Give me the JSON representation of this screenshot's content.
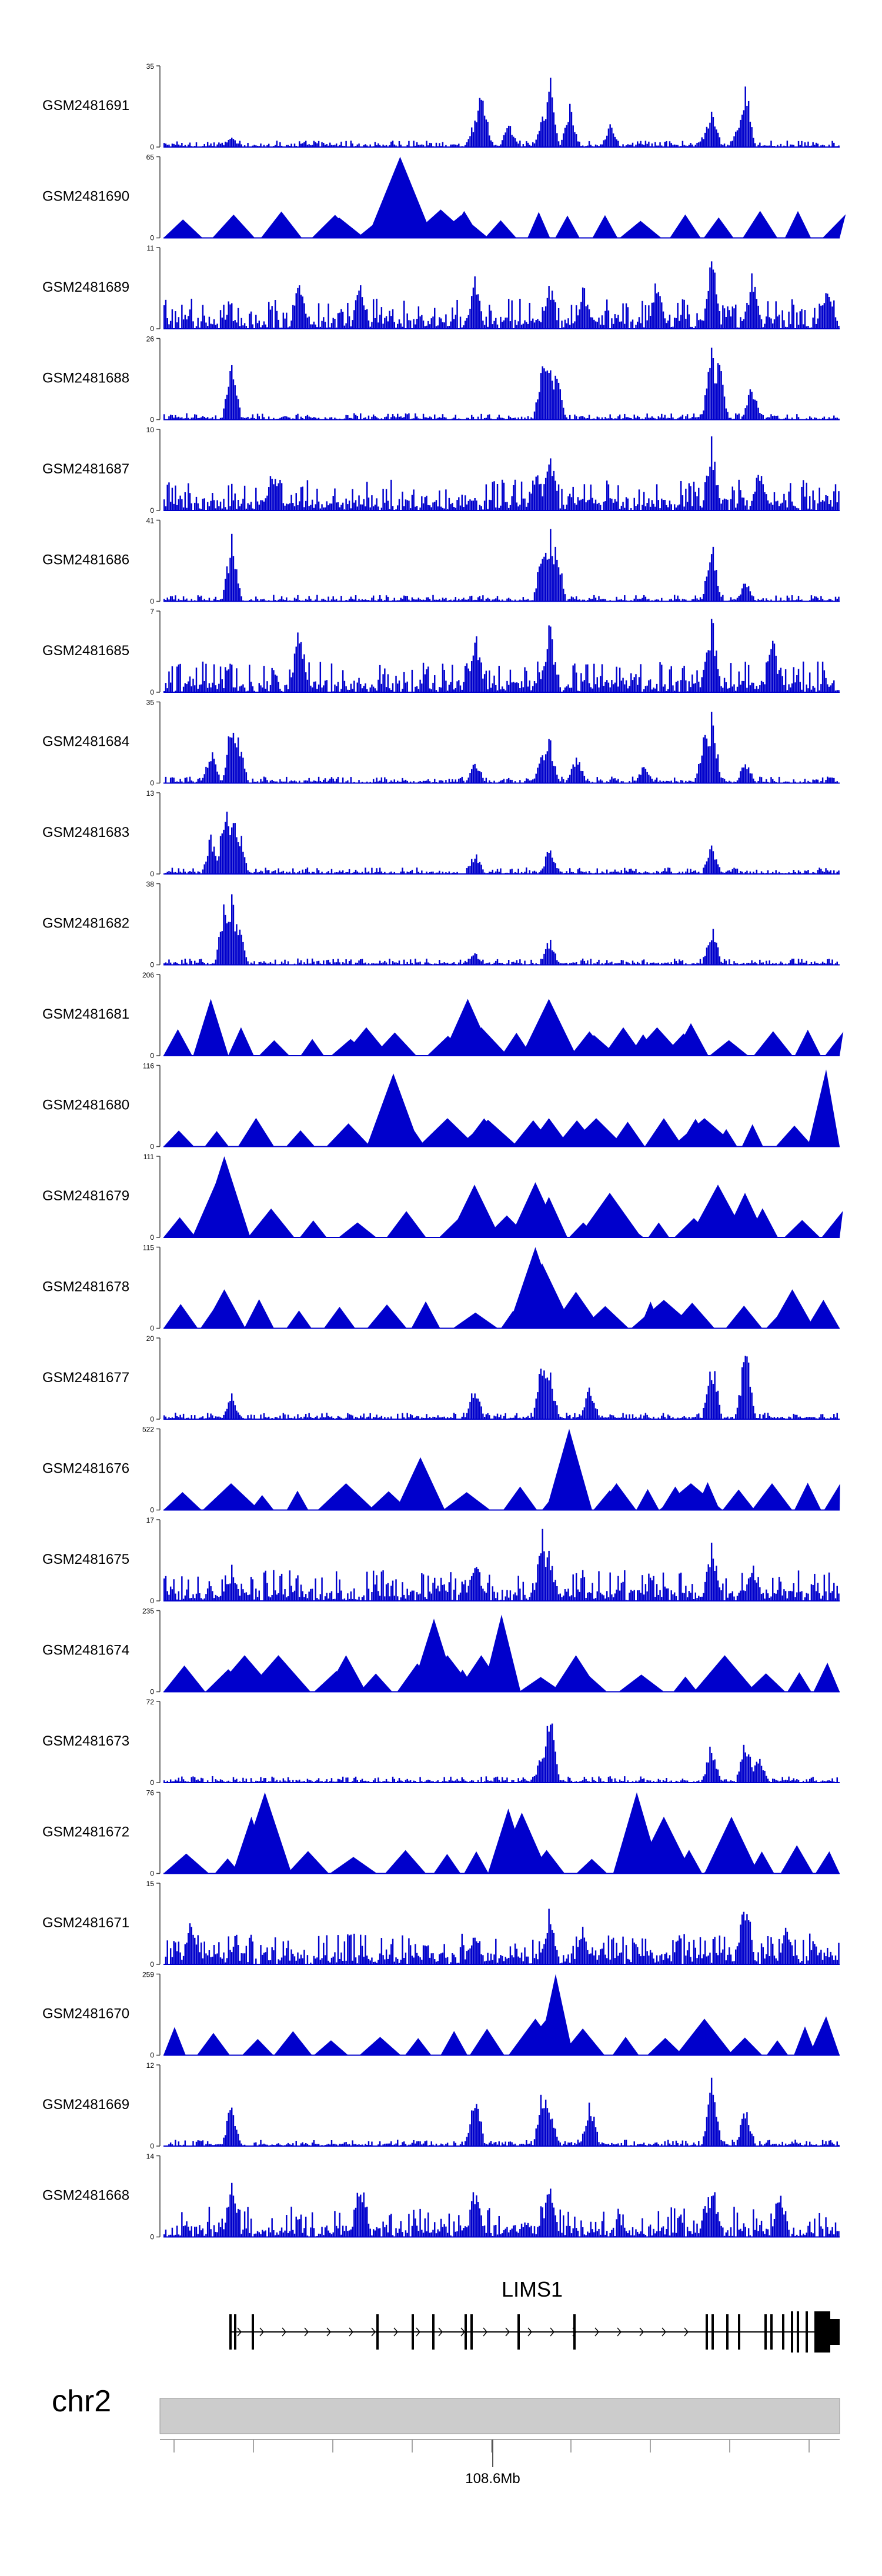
{
  "colors": {
    "signal": "#0000cc",
    "axis": "#555555",
    "ideogram": "#cccccc",
    "gene": "#000000"
  },
  "chart_data": {
    "type": "area",
    "title": "",
    "xlabel": "",
    "chromosome": "chr2",
    "position_label": "108.6Mb",
    "gene": {
      "name": "LIMS1",
      "strand": "+",
      "exon_count": 30
    },
    "tracks": [
      {
        "sample": "GSM2481691",
        "ymax": "35",
        "ymin": "0",
        "peaks": [
          [
            0.1,
            0.15
          ],
          [
            0.46,
            0.38
          ],
          [
            0.47,
            0.85
          ],
          [
            0.51,
            0.3
          ],
          [
            0.56,
            0.45
          ],
          [
            0.57,
            1.0
          ],
          [
            0.6,
            0.55
          ],
          [
            0.66,
            0.33
          ],
          [
            0.8,
            0.2
          ],
          [
            0.81,
            0.62
          ],
          [
            0.85,
            0.3
          ],
          [
            0.86,
            0.82
          ]
        ],
        "style": "dense"
      },
      {
        "sample": "GSM2481690",
        "ymax": "65",
        "ymin": "0",
        "peaks": [
          [
            0.35,
            1.0
          ],
          [
            0.33,
            0.3
          ],
          [
            0.41,
            0.35
          ],
          [
            0.26,
            0.25
          ],
          [
            0.44,
            0.28
          ]
        ],
        "style": "triangles"
      },
      {
        "sample": "GSM2481689",
        "ymax": "11",
        "ymin": "0",
        "peaks": [
          [
            0.2,
            0.7
          ],
          [
            0.29,
            0.62
          ],
          [
            0.46,
            0.7
          ],
          [
            0.57,
            0.65
          ],
          [
            0.62,
            0.58
          ],
          [
            0.73,
            0.75
          ],
          [
            0.81,
            1.0
          ],
          [
            0.87,
            0.78
          ],
          [
            0.98,
            0.7
          ]
        ],
        "style": "noisy"
      },
      {
        "sample": "GSM2481688",
        "ymax": "26",
        "ymin": "0",
        "peaks": [
          [
            0.1,
            0.75
          ],
          [
            0.56,
            0.85
          ],
          [
            0.57,
            1.0
          ],
          [
            0.58,
            0.75
          ],
          [
            0.81,
            0.95
          ],
          [
            0.82,
            0.85
          ],
          [
            0.87,
            0.5
          ]
        ],
        "style": "dense"
      },
      {
        "sample": "GSM2481687",
        "ymax": "10",
        "ymin": "0",
        "peaks": [
          [
            0.16,
            0.6
          ],
          [
            0.55,
            0.65
          ],
          [
            0.57,
            0.9
          ],
          [
            0.81,
            1.0
          ],
          [
            0.88,
            0.55
          ]
        ],
        "style": "noisy"
      },
      {
        "sample": "GSM2481686",
        "ymax": "41",
        "ymin": "0",
        "peaks": [
          [
            0.1,
            0.85
          ],
          [
            0.56,
            0.8
          ],
          [
            0.57,
            1.0
          ],
          [
            0.58,
            0.75
          ],
          [
            0.81,
            0.8
          ],
          [
            0.86,
            0.3
          ]
        ],
        "style": "dense"
      },
      {
        "sample": "GSM2481685",
        "ymax": "7",
        "ymin": "0",
        "peaks": [
          [
            0.2,
            0.95
          ],
          [
            0.46,
            0.9
          ],
          [
            0.57,
            1.0
          ],
          [
            0.81,
            1.0
          ],
          [
            0.9,
            0.75
          ]
        ],
        "style": "noisy"
      },
      {
        "sample": "GSM2481684",
        "ymax": "35",
        "ymin": "0",
        "peaks": [
          [
            0.07,
            0.45
          ],
          [
            0.1,
            0.85
          ],
          [
            0.11,
            0.62
          ],
          [
            0.46,
            0.35
          ],
          [
            0.56,
            0.45
          ],
          [
            0.57,
            0.6
          ],
          [
            0.61,
            0.4
          ],
          [
            0.71,
            0.25
          ],
          [
            0.8,
            0.7
          ],
          [
            0.81,
            0.95
          ],
          [
            0.86,
            0.3
          ]
        ],
        "style": "dense"
      },
      {
        "sample": "GSM2481683",
        "ymax": "13",
        "ymin": "0",
        "peaks": [
          [
            0.07,
            0.55
          ],
          [
            0.09,
            0.95
          ],
          [
            0.1,
            1.0
          ],
          [
            0.11,
            0.7
          ],
          [
            0.46,
            0.3
          ],
          [
            0.57,
            0.35
          ],
          [
            0.81,
            0.4
          ]
        ],
        "style": "dense"
      },
      {
        "sample": "GSM2481682",
        "ymax": "38",
        "ymin": "0",
        "peaks": [
          [
            0.09,
            0.95
          ],
          [
            0.1,
            1.0
          ],
          [
            0.11,
            0.65
          ],
          [
            0.46,
            0.18
          ],
          [
            0.57,
            0.35
          ],
          [
            0.81,
            0.55
          ]
        ],
        "style": "dense"
      },
      {
        "sample": "GSM2481681",
        "ymax": "206",
        "ymin": "0",
        "peaks": [
          [
            0.07,
            0.7
          ],
          [
            0.3,
            0.35
          ],
          [
            0.45,
            0.7
          ],
          [
            0.47,
            0.35
          ],
          [
            0.57,
            0.7
          ],
          [
            0.63,
            0.3
          ],
          [
            0.68,
            0.35
          ],
          [
            0.73,
            0.35
          ],
          [
            0.78,
            0.4
          ]
        ],
        "style": "triangles"
      },
      {
        "sample": "GSM2481680",
        "ymax": "116",
        "ymin": "0",
        "peaks": [
          [
            0.34,
            0.9
          ],
          [
            0.36,
            0.33
          ],
          [
            0.42,
            0.35
          ],
          [
            0.48,
            0.33
          ],
          [
            0.57,
            0.35
          ],
          [
            0.64,
            0.35
          ],
          [
            0.74,
            0.35
          ],
          [
            0.8,
            0.35
          ],
          [
            0.98,
            0.95
          ]
        ],
        "style": "triangles"
      },
      {
        "sample": "GSM2481679",
        "ymax": "111",
        "ymin": "0",
        "peaks": [
          [
            0.09,
            1.0
          ],
          [
            0.08,
            0.72
          ],
          [
            0.46,
            0.65
          ],
          [
            0.55,
            0.68
          ],
          [
            0.57,
            0.5
          ],
          [
            0.66,
            0.55
          ],
          [
            0.82,
            0.65
          ],
          [
            0.86,
            0.55
          ]
        ],
        "style": "triangles"
      },
      {
        "sample": "GSM2481678",
        "ymax": "115",
        "ymin": "0",
        "peaks": [
          [
            0.55,
            1.0
          ],
          [
            0.56,
            0.8
          ],
          [
            0.09,
            0.48
          ],
          [
            0.61,
            0.45
          ],
          [
            0.74,
            0.35
          ],
          [
            0.93,
            0.48
          ]
        ],
        "style": "triangles"
      },
      {
        "sample": "GSM2481677",
        "ymax": "20",
        "ymin": "0",
        "peaks": [
          [
            0.1,
            0.35
          ],
          [
            0.46,
            0.5
          ],
          [
            0.56,
            0.95
          ],
          [
            0.57,
            0.7
          ],
          [
            0.63,
            0.45
          ],
          [
            0.81,
            0.9
          ],
          [
            0.86,
            1.0
          ]
        ],
        "style": "dense"
      },
      {
        "sample": "GSM2481676",
        "ymax": "522",
        "ymin": "0",
        "peaks": [
          [
            0.1,
            0.33
          ],
          [
            0.27,
            0.33
          ],
          [
            0.38,
            0.65
          ],
          [
            0.6,
            1.0
          ],
          [
            0.67,
            0.33
          ],
          [
            0.78,
            0.33
          ],
          [
            0.9,
            0.33
          ]
        ],
        "style": "triangles"
      },
      {
        "sample": "GSM2481675",
        "ymax": "17",
        "ymin": "0",
        "peaks": [
          [
            0.1,
            0.45
          ],
          [
            0.46,
            0.65
          ],
          [
            0.56,
            1.0
          ],
          [
            0.57,
            0.7
          ],
          [
            0.81,
            0.85
          ],
          [
            0.87,
            0.55
          ]
        ],
        "style": "noisy"
      },
      {
        "sample": "GSM2481674",
        "ymax": "235",
        "ymin": "0",
        "peaks": [
          [
            0.12,
            0.45
          ],
          [
            0.17,
            0.45
          ],
          [
            0.27,
            0.45
          ],
          [
            0.4,
            0.9
          ],
          [
            0.42,
            0.45
          ],
          [
            0.47,
            0.45
          ],
          [
            0.5,
            0.95
          ],
          [
            0.61,
            0.45
          ],
          [
            0.83,
            0.45
          ]
        ],
        "style": "triangles"
      },
      {
        "sample": "GSM2481673",
        "ymax": "72",
        "ymin": "0",
        "peaks": [
          [
            0.57,
            1.0
          ],
          [
            0.56,
            0.45
          ],
          [
            0.81,
            0.55
          ],
          [
            0.86,
            0.65
          ],
          [
            0.88,
            0.4
          ]
        ],
        "style": "dense"
      },
      {
        "sample": "GSM2481672",
        "ymax": "76",
        "ymin": "0",
        "peaks": [
          [
            0.15,
            1.0
          ],
          [
            0.13,
            0.7
          ],
          [
            0.51,
            0.8
          ],
          [
            0.53,
            0.75
          ],
          [
            0.7,
            1.0
          ],
          [
            0.74,
            0.7
          ],
          [
            0.84,
            0.7
          ]
        ],
        "style": "triangles"
      },
      {
        "sample": "GSM2481671",
        "ymax": "15",
        "ymin": "0",
        "peaks": [
          [
            0.04,
            0.75
          ],
          [
            0.46,
            0.55
          ],
          [
            0.57,
            0.75
          ],
          [
            0.62,
            0.5
          ],
          [
            0.86,
            1.0
          ],
          [
            0.92,
            0.5
          ]
        ],
        "style": "noisy"
      },
      {
        "sample": "GSM2481670",
        "ymax": "259",
        "ymin": "0",
        "peaks": [
          [
            0.58,
            1.0
          ],
          [
            0.57,
            0.48
          ],
          [
            0.55,
            0.45
          ],
          [
            0.8,
            0.45
          ],
          [
            0.98,
            0.48
          ]
        ],
        "style": "triangles"
      },
      {
        "sample": "GSM2481669",
        "ymax": "12",
        "ymin": "0",
        "peaks": [
          [
            0.1,
            0.6
          ],
          [
            0.46,
            0.8
          ],
          [
            0.56,
            0.85
          ],
          [
            0.57,
            0.65
          ],
          [
            0.63,
            0.6
          ],
          [
            0.81,
            1.0
          ],
          [
            0.86,
            0.55
          ]
        ],
        "style": "dense"
      },
      {
        "sample": "GSM2481668",
        "ymax": "14",
        "ymin": "0",
        "peaks": [
          [
            0.1,
            0.8
          ],
          [
            0.29,
            0.95
          ],
          [
            0.46,
            0.75
          ],
          [
            0.57,
            0.75
          ],
          [
            0.81,
            0.8
          ],
          [
            0.91,
            0.7
          ]
        ],
        "style": "noisy"
      }
    ]
  }
}
